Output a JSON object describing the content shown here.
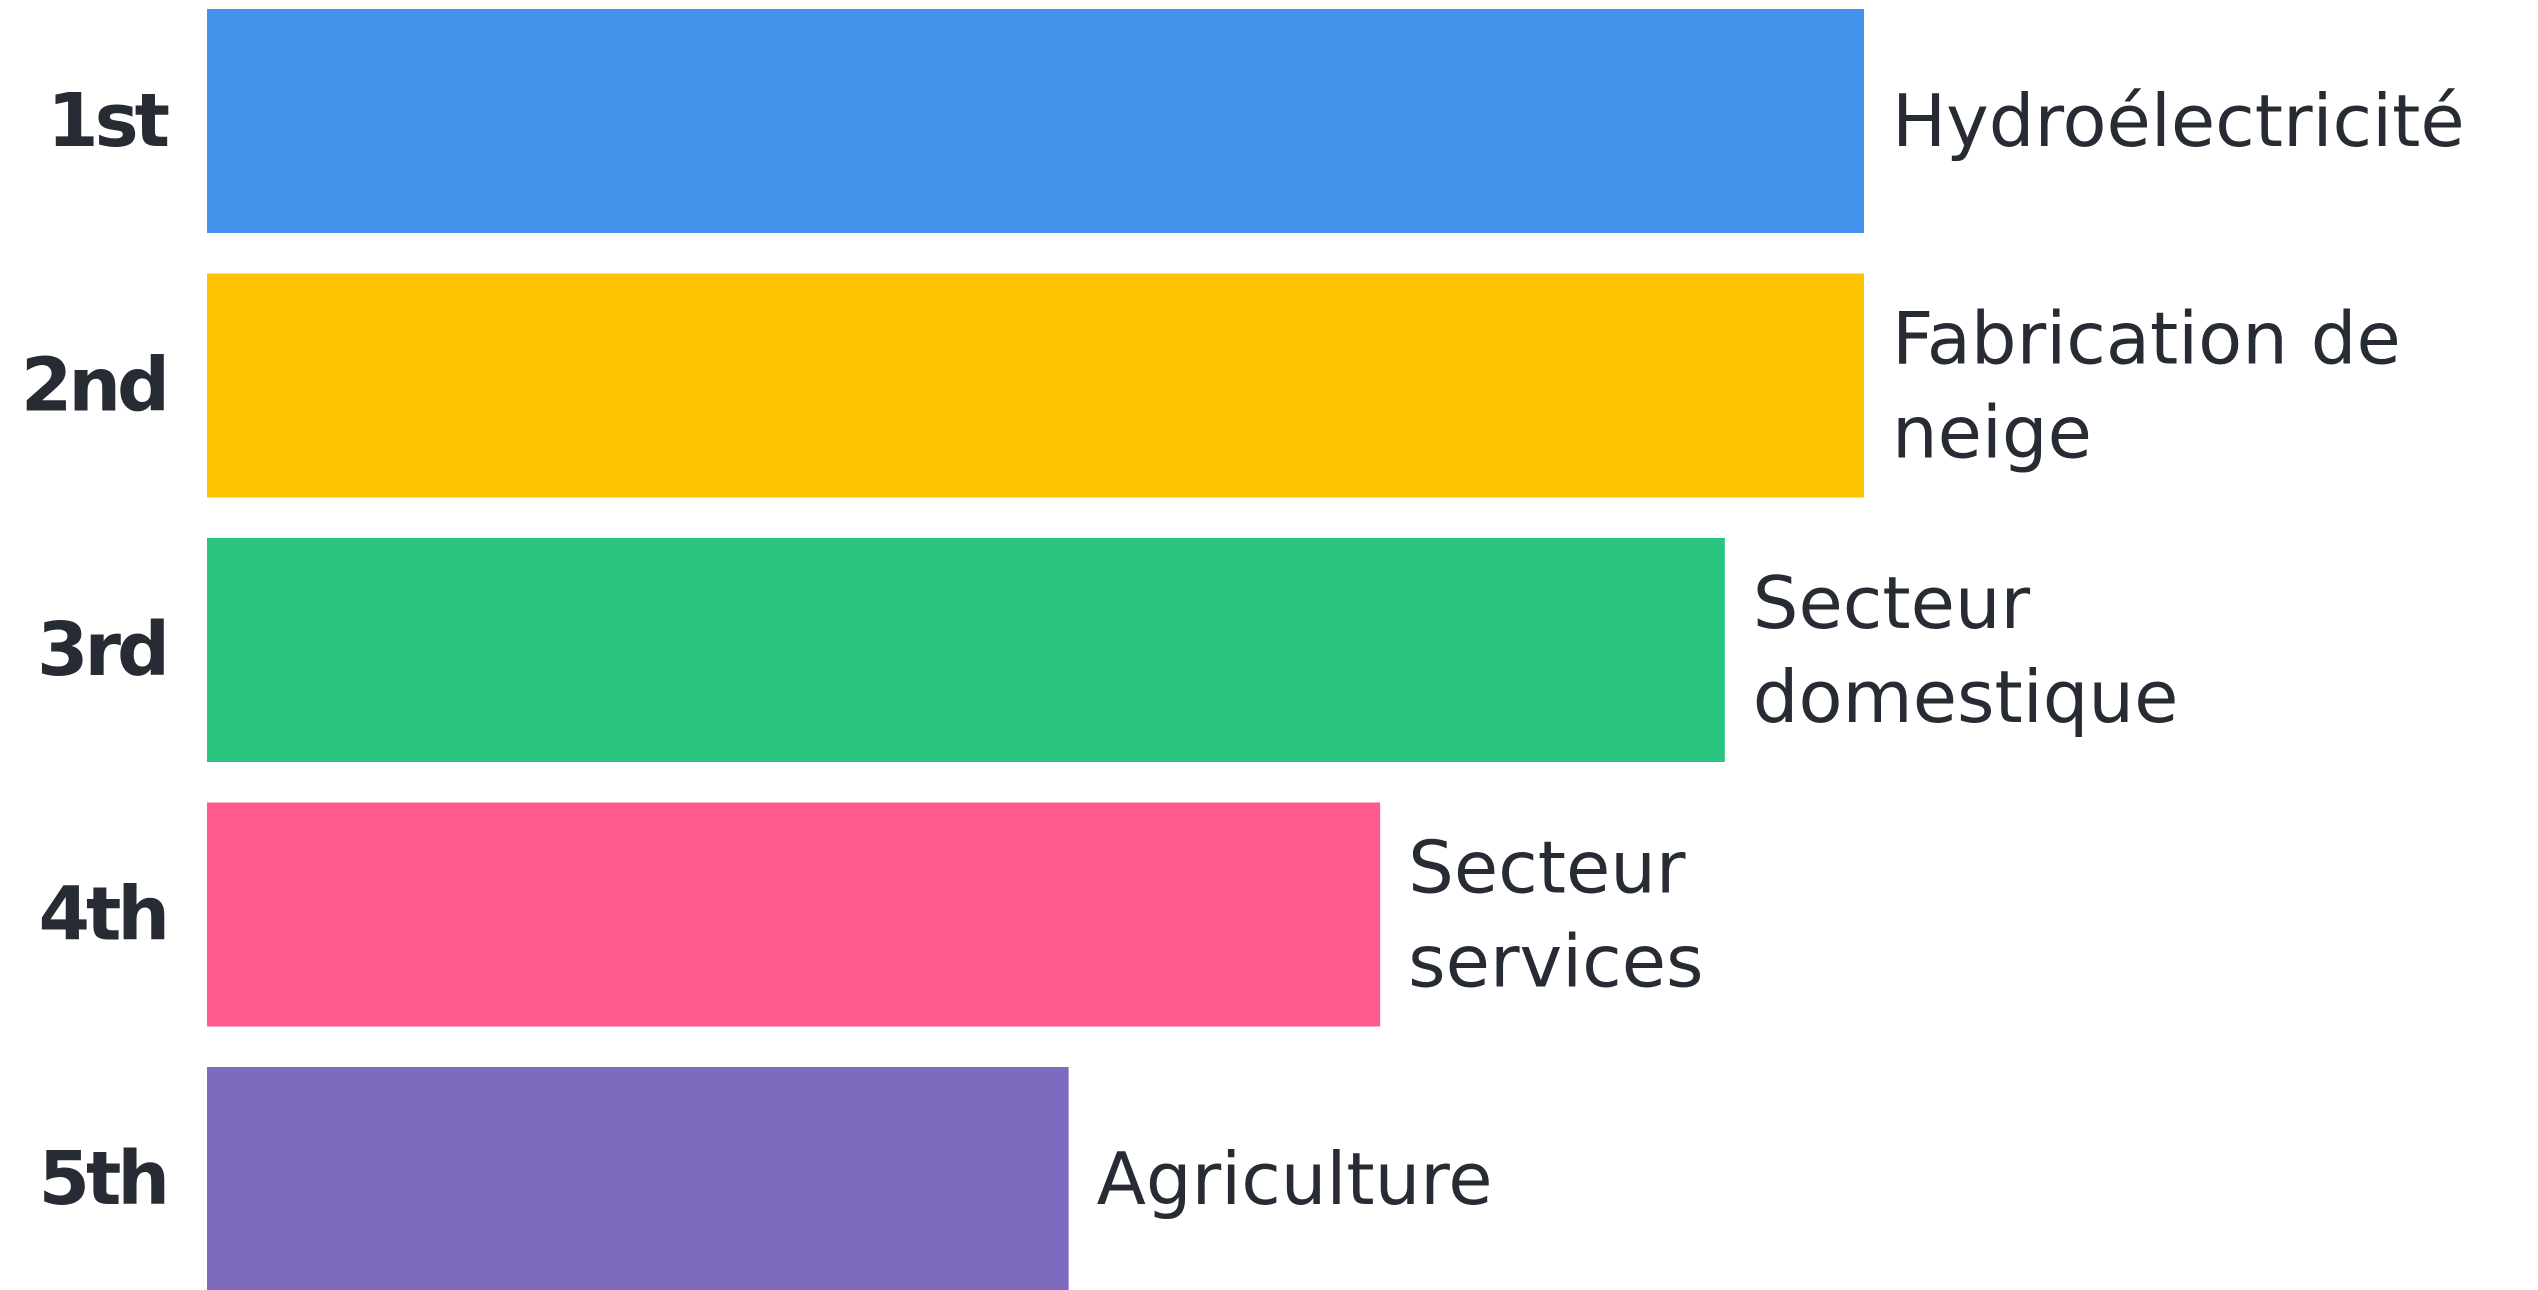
{
  "chart_data": {
    "type": "bar",
    "orientation": "horizontal",
    "categories": [
      "1st",
      "2nd",
      "3rd",
      "4th",
      "5th"
    ],
    "bars": [
      {
        "rank": "1st",
        "label_lines": [
          "Hydroélectricité"
        ],
        "value": 100,
        "color": "#4393ed"
      },
      {
        "rank": "2nd",
        "label_lines": [
          "Fabrication de",
          "neige"
        ],
        "value": 100,
        "color": "#fdc300"
      },
      {
        "rank": "3rd",
        "label_lines": [
          "Secteur",
          "domestique"
        ],
        "value": 91.6,
        "color": "#29c47e"
      },
      {
        "rank": "4th",
        "label_lines": [
          "Secteur",
          "services"
        ],
        "value": 70.8,
        "color": "#ff5b8c"
      },
      {
        "rank": "5th",
        "label_lines": [
          "Agriculture"
        ],
        "value": 52,
        "color": "#7e6bbf"
      }
    ],
    "title": "",
    "xlabel": "",
    "ylabel": "",
    "xlim": [
      0,
      100
    ],
    "grid": false,
    "legend": "none",
    "value_axis_shown": false
  }
}
